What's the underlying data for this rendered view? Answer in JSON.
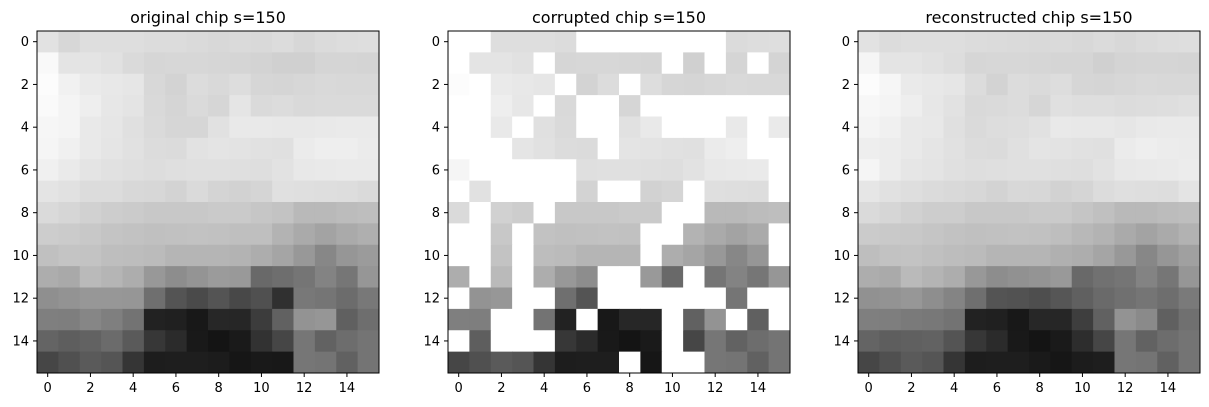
{
  "chart_data": [
    {
      "type": "heatmap",
      "title": "original chip s=150",
      "colormap": "gray",
      "rows": 16,
      "cols": 16,
      "xticks": [
        "0",
        "2",
        "4",
        "6",
        "8",
        "10",
        "12",
        "14"
      ],
      "yticks": [
        "0",
        "2",
        "4",
        "6",
        "8",
        "10",
        "12",
        "14"
      ],
      "values": [
        [
          226,
          215,
          222,
          222,
          222,
          220,
          220,
          218,
          216,
          218,
          217,
          220,
          215,
          219,
          221,
          222
        ],
        [
          249,
          228,
          228,
          225,
          218,
          214,
          215,
          215,
          214,
          213,
          211,
          208,
          208,
          213,
          213,
          212
        ],
        [
          252,
          241,
          234,
          232,
          230,
          216,
          211,
          220,
          217,
          221,
          214,
          213,
          215,
          217,
          216,
          216
        ],
        [
          250,
          244,
          238,
          231,
          228,
          217,
          213,
          218,
          214,
          229,
          218,
          220,
          217,
          218,
          218,
          218
        ],
        [
          246,
          244,
          233,
          230,
          224,
          218,
          214,
          214,
          225,
          233,
          233,
          232,
          232,
          233,
          234,
          234
        ],
        [
          245,
          240,
          233,
          229,
          225,
          220,
          219,
          226,
          228,
          227,
          225,
          224,
          235,
          238,
          238,
          235
        ],
        [
          240,
          234,
          228,
          225,
          223,
          221,
          223,
          224,
          224,
          223,
          222,
          226,
          232,
          233,
          234,
          234
        ],
        [
          228,
          225,
          220,
          220,
          216,
          215,
          211,
          218,
          212,
          210,
          213,
          224,
          223,
          222,
          221,
          218
        ],
        [
          218,
          214,
          209,
          205,
          203,
          200,
          200,
          200,
          202,
          202,
          198,
          195,
          185,
          185,
          188,
          190
        ],
        [
          205,
          203,
          200,
          196,
          194,
          192,
          193,
          194,
          193,
          191,
          191,
          179,
          170,
          163,
          170,
          175
        ],
        [
          192,
          196,
          195,
          190,
          189,
          187,
          181,
          181,
          181,
          179,
          173,
          165,
          152,
          135,
          150,
          155
        ],
        [
          173,
          169,
          186,
          181,
          173,
          152,
          141,
          148,
          155,
          153,
          105,
          110,
          117,
          131,
          118,
          150
        ],
        [
          143,
          147,
          151,
          151,
          150,
          111,
          84,
          74,
          84,
          72,
          80,
          48,
          120,
          117,
          108,
          120
        ],
        [
          127,
          126,
          134,
          127,
          115,
          34,
          32,
          24,
          39,
          38,
          60,
          97,
          147,
          150,
          96,
          110
        ],
        [
          100,
          94,
          98,
          107,
          90,
          55,
          43,
          25,
          20,
          26,
          50,
          70,
          118,
          98,
          109,
          116
        ],
        [
          70,
          80,
          90,
          85,
          53,
          29,
          30,
          30,
          28,
          22,
          25,
          24,
          118,
          116,
          97,
          116
        ]
      ]
    },
    {
      "type": "heatmap",
      "title": "corrupted chip s=150",
      "colormap": "gray",
      "rows": 16,
      "cols": 16,
      "missing_value": 255,
      "xticks": [
        "0",
        "2",
        "4",
        "6",
        "8",
        "10",
        "12",
        "14"
      ],
      "yticks": [
        "0",
        "2",
        "4",
        "6",
        "8",
        "10",
        "12",
        "14"
      ],
      "values": [
        [
          255,
          255,
          222,
          222,
          222,
          220,
          255,
          255,
          255,
          255,
          255,
          255,
          255,
          219,
          221,
          222
        ],
        [
          255,
          228,
          228,
          225,
          255,
          214,
          215,
          215,
          214,
          213,
          255,
          208,
          255,
          213,
          255,
          212
        ],
        [
          252,
          255,
          234,
          232,
          230,
          255,
          211,
          220,
          255,
          221,
          214,
          213,
          215,
          217,
          216,
          216
        ],
        [
          255,
          255,
          238,
          231,
          255,
          217,
          255,
          255,
          214,
          255,
          255,
          255,
          255,
          255,
          255,
          255
        ],
        [
          255,
          255,
          233,
          255,
          224,
          218,
          255,
          255,
          225,
          233,
          255,
          255,
          255,
          233,
          255,
          234
        ],
        [
          255,
          255,
          255,
          229,
          225,
          220,
          219,
          255,
          228,
          227,
          225,
          224,
          235,
          238,
          255,
          255
        ],
        [
          245,
          255,
          255,
          255,
          255,
          255,
          223,
          224,
          224,
          223,
          222,
          226,
          232,
          233,
          234,
          255
        ],
        [
          255,
          225,
          255,
          255,
          255,
          255,
          211,
          255,
          255,
          210,
          213,
          255,
          223,
          222,
          221,
          255
        ],
        [
          218,
          255,
          209,
          205,
          255,
          200,
          200,
          200,
          202,
          202,
          255,
          255,
          185,
          185,
          188,
          190
        ],
        [
          255,
          255,
          200,
          255,
          194,
          192,
          193,
          194,
          193,
          255,
          255,
          179,
          170,
          163,
          170,
          255
        ],
        [
          255,
          255,
          195,
          255,
          189,
          187,
          181,
          181,
          181,
          255,
          173,
          165,
          152,
          135,
          150,
          255
        ],
        [
          173,
          255,
          186,
          255,
          173,
          152,
          141,
          255,
          255,
          153,
          105,
          255,
          117,
          131,
          118,
          150
        ],
        [
          255,
          147,
          151,
          255,
          255,
          111,
          84,
          255,
          255,
          255,
          255,
          255,
          255,
          117,
          255,
          255
        ],
        [
          127,
          126,
          255,
          255,
          115,
          34,
          255,
          24,
          39,
          38,
          255,
          97,
          147,
          255,
          96,
          255
        ],
        [
          255,
          94,
          255,
          255,
          255,
          55,
          43,
          25,
          20,
          26,
          255,
          70,
          118,
          98,
          109,
          116
        ],
        [
          70,
          80,
          90,
          85,
          53,
          29,
          30,
          30,
          255,
          22,
          255,
          255,
          118,
          116,
          97,
          116
        ]
      ]
    },
    {
      "type": "heatmap",
      "title": "reconstructed chip s=150",
      "colormap": "gray",
      "rows": 16,
      "cols": 16,
      "xticks": [
        "0",
        "2",
        "4",
        "6",
        "8",
        "10",
        "12",
        "14"
      ],
      "yticks": [
        "0",
        "2",
        "4",
        "6",
        "8",
        "10",
        "12",
        "14"
      ],
      "values": [
        [
          226,
          220,
          222,
          222,
          222,
          220,
          219,
          218,
          217,
          218,
          216,
          219,
          216,
          219,
          221,
          222
        ],
        [
          245,
          228,
          228,
          225,
          221,
          214,
          215,
          215,
          214,
          213,
          213,
          208,
          212,
          213,
          213,
          212
        ],
        [
          252,
          246,
          234,
          232,
          230,
          220,
          211,
          220,
          218,
          221,
          214,
          213,
          215,
          217,
          216,
          216
        ],
        [
          247,
          244,
          238,
          231,
          226,
          217,
          218,
          220,
          214,
          224,
          222,
          222,
          220,
          221,
          222,
          224
        ],
        [
          244,
          240,
          233,
          232,
          224,
          218,
          221,
          222,
          225,
          233,
          232,
          232,
          230,
          233,
          234,
          234
        ],
        [
          238,
          236,
          233,
          229,
          225,
          220,
          219,
          224,
          228,
          227,
          225,
          224,
          235,
          238,
          236,
          235
        ],
        [
          245,
          236,
          230,
          228,
          224,
          222,
          223,
          224,
          224,
          223,
          222,
          226,
          232,
          233,
          234,
          236
        ],
        [
          230,
          225,
          222,
          219,
          217,
          215,
          211,
          216,
          215,
          210,
          213,
          220,
          223,
          222,
          221,
          228
        ],
        [
          218,
          214,
          209,
          205,
          205,
          200,
          200,
          200,
          202,
          202,
          197,
          192,
          185,
          185,
          188,
          190
        ],
        [
          203,
          201,
          200,
          197,
          194,
          192,
          193,
          194,
          193,
          190,
          184,
          179,
          170,
          163,
          170,
          178
        ],
        [
          190,
          194,
          195,
          192,
          189,
          187,
          181,
          181,
          181,
          176,
          173,
          165,
          152,
          135,
          150,
          160
        ],
        [
          173,
          170,
          186,
          180,
          173,
          152,
          141,
          145,
          148,
          153,
          105,
          113,
          117,
          131,
          118,
          150
        ],
        [
          145,
          147,
          151,
          142,
          132,
          111,
          84,
          82,
          78,
          86,
          96,
          106,
          112,
          117,
          110,
          122
        ],
        [
          127,
          126,
          122,
          120,
          115,
          34,
          32,
          24,
          39,
          38,
          62,
          97,
          147,
          138,
          96,
          112
        ],
        [
          100,
          94,
          96,
          98,
          84,
          55,
          43,
          25,
          20,
          26,
          45,
          70,
          118,
          98,
          109,
          116
        ],
        [
          70,
          80,
          90,
          85,
          53,
          29,
          30,
          30,
          26,
          22,
          28,
          30,
          118,
          116,
          97,
          116
        ]
      ]
    }
  ]
}
